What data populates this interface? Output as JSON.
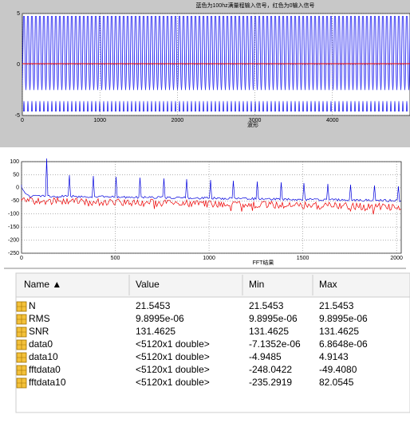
{
  "top_plot": {
    "title": "蓝色为100hz满量程输入信号，红色为0输入信号",
    "xlabel": "波形",
    "xlim": [
      0,
      5000
    ],
    "ylim": [
      -5,
      5
    ],
    "xticks": [
      0,
      1000,
      2000,
      3000,
      4000
    ],
    "yticks": [
      -5,
      0,
      5
    ]
  },
  "bottom_plot": {
    "xlabel": "FFT结果",
    "xlim": [
      0,
      2025
    ],
    "ylim": [
      -250,
      100
    ],
    "xticks": [
      0,
      500,
      1000,
      1500,
      2000
    ],
    "yticks": [
      -250,
      -200,
      -150,
      -100,
      -50,
      0,
      50,
      100
    ]
  },
  "table": {
    "headers": [
      "Name ▲",
      "Value",
      "Min",
      "Max"
    ],
    "rows": [
      [
        "N",
        "21.5453",
        "21.5453",
        "21.5453"
      ],
      [
        "RMS",
        "9.8995e-06",
        "9.8995e-06",
        "9.8995e-06"
      ],
      [
        "SNR",
        "131.4625",
        "131.4625",
        "131.4625"
      ],
      [
        "data0",
        "<5120x1 double>",
        "-7.1352e-06",
        "6.8648e-06"
      ],
      [
        "data10",
        "<5120x1 double>",
        "-4.9485",
        "4.9143"
      ],
      [
        "fftdata0",
        "<5120x1 double>",
        "-248.0422",
        "-49.4080"
      ],
      [
        "fftdata10",
        "<5120x1 double>",
        "-235.2919",
        "82.0545"
      ]
    ]
  }
}
